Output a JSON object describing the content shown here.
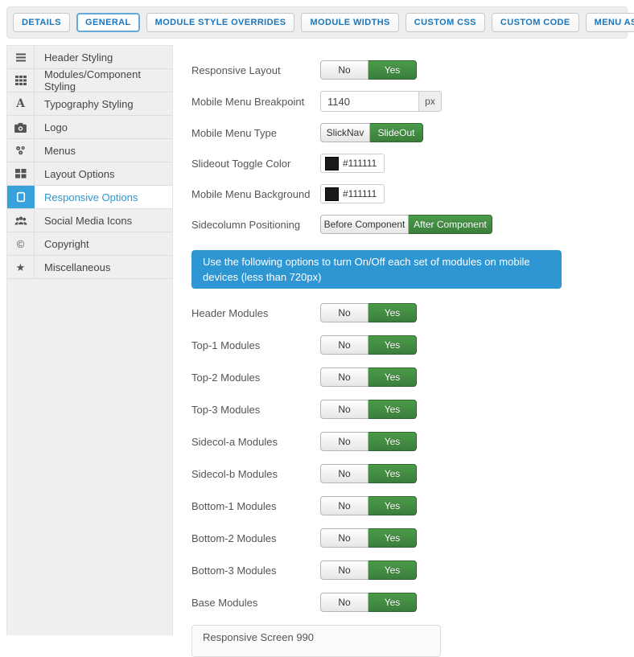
{
  "tabs": {
    "items": [
      {
        "label": "DETAILS",
        "active": false
      },
      {
        "label": "GENERAL",
        "active": true
      },
      {
        "label": "MODULE STYLE OVERRIDES",
        "active": false
      },
      {
        "label": "MODULE WIDTHS",
        "active": false
      },
      {
        "label": "CUSTOM CSS",
        "active": false
      },
      {
        "label": "CUSTOM CODE",
        "active": false
      },
      {
        "label": "MENU ASSIGNMENT",
        "active": false
      }
    ]
  },
  "sidebar": {
    "items": [
      {
        "label": "Header Styling",
        "icon": "hamburger-icon",
        "active": false
      },
      {
        "label": "Modules/Component Styling",
        "icon": "grid-icon",
        "active": false
      },
      {
        "label": "Typography Styling",
        "icon": "letter-a-icon",
        "active": false
      },
      {
        "label": "Logo",
        "icon": "camera-icon",
        "active": false
      },
      {
        "label": "Menus",
        "icon": "gears-icon",
        "active": false
      },
      {
        "label": "Layout Options",
        "icon": "layout-grid-icon",
        "active": false
      },
      {
        "label": "Responsive Options",
        "icon": "tablet-icon",
        "active": true
      },
      {
        "label": "Social Media Icons",
        "icon": "users-icon",
        "active": false
      },
      {
        "label": "Copyright",
        "icon": "copyright-icon",
        "active": false
      },
      {
        "label": "Miscellaneous",
        "icon": "star-icon",
        "active": false
      }
    ]
  },
  "panel": {
    "rows": {
      "responsive_layout": {
        "label": "Responsive Layout",
        "options": [
          "No",
          "Yes"
        ],
        "selected": "Yes"
      },
      "mobile_menu_breakpoint": {
        "label": "Mobile Menu Breakpoint",
        "value": "1140",
        "unit": "px"
      },
      "mobile_menu_type": {
        "label": "Mobile Menu Type",
        "options": [
          "SlickNav",
          "SlideOut"
        ],
        "selected": "SlideOut"
      },
      "slideout_toggle_color": {
        "label": "Slideout Toggle Color",
        "value": "#111111",
        "swatch": "#111111"
      },
      "mobile_menu_background": {
        "label": "Mobile Menu Background",
        "value": "#111111",
        "swatch": "#111111"
      },
      "sidecolumn_positioning": {
        "label": "Sidecolumn Positioning",
        "options": [
          "Before Component",
          "After Component"
        ],
        "selected": "After Component"
      }
    },
    "info_box": {
      "text": "Use the following options to turn On/Off each set of modules on mobile devices (less than 720px)"
    },
    "module_toggles": [
      {
        "label": "Header Modules",
        "options": [
          "No",
          "Yes"
        ],
        "selected": "Yes"
      },
      {
        "label": "Top-1 Modules",
        "options": [
          "No",
          "Yes"
        ],
        "selected": "Yes"
      },
      {
        "label": "Top-2 Modules",
        "options": [
          "No",
          "Yes"
        ],
        "selected": "Yes"
      },
      {
        "label": "Top-3 Modules",
        "options": [
          "No",
          "Yes"
        ],
        "selected": "Yes"
      },
      {
        "label": "Sidecol-a Modules",
        "options": [
          "No",
          "Yes"
        ],
        "selected": "Yes"
      },
      {
        "label": "Sidecol-b Modules",
        "options": [
          "No",
          "Yes"
        ],
        "selected": "Yes"
      },
      {
        "label": "Bottom-1 Modules",
        "options": [
          "No",
          "Yes"
        ],
        "selected": "Yes"
      },
      {
        "label": "Bottom-2 Modules",
        "options": [
          "No",
          "Yes"
        ],
        "selected": "Yes"
      },
      {
        "label": "Bottom-3 Modules",
        "options": [
          "No",
          "Yes"
        ],
        "selected": "Yes"
      },
      {
        "label": "Base Modules",
        "options": [
          "No",
          "Yes"
        ],
        "selected": "Yes"
      }
    ],
    "partial_panel": {
      "label": "Responsive Screen 990"
    }
  },
  "colors": {
    "accent_blue": "#2f96d4",
    "sidebar_active_blue": "#36a1da",
    "tab_text_blue": "#1a76bc",
    "toggle_active_green": "#3d853d",
    "swatch_color": "#111111"
  }
}
